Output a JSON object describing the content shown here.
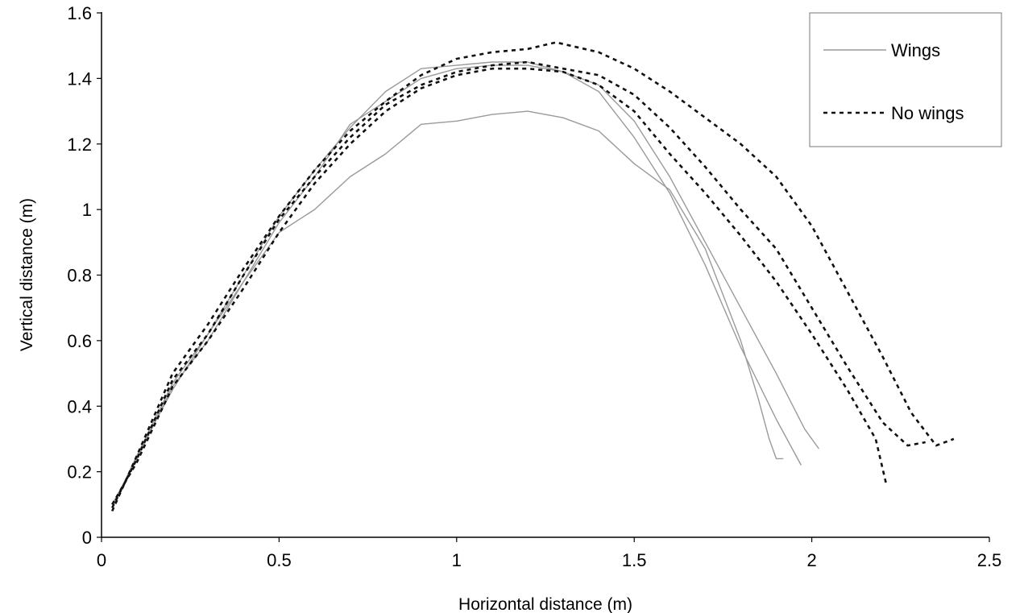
{
  "chart_data": {
    "type": "line",
    "xlabel": "Horizontal distance (m)",
    "ylabel": "Vertical distance (m)",
    "xlim": [
      0,
      2.5
    ],
    "ylim": [
      0,
      1.6
    ],
    "xticks": [
      0,
      0.5,
      1,
      1.5,
      2,
      2.5
    ],
    "xtick_labels": [
      "0",
      "0.5",
      "1",
      "1.5",
      "2",
      "2.5"
    ],
    "yticks": [
      0,
      0.2,
      0.4,
      0.6,
      0.8,
      1,
      1.2,
      1.4,
      1.6
    ],
    "ytick_labels": [
      "0",
      "0.2",
      "0.4",
      "0.6",
      "0.8",
      "1",
      "1.2",
      "1.4",
      "1.6"
    ],
    "grid": false,
    "legend_position": "top-right",
    "legend": [
      {
        "label": "Wings",
        "style": "solid",
        "color": "#9a9a9a"
      },
      {
        "label": "No wings",
        "style": "dashed",
        "color": "#111111"
      }
    ],
    "series": [
      {
        "group": "Wings",
        "x": [
          0.03,
          0.1,
          0.2,
          0.3,
          0.4,
          0.5,
          0.6,
          0.7,
          0.8,
          0.9,
          1.0,
          1.1,
          1.2,
          1.3,
          1.4,
          1.5,
          1.6,
          1.7,
          1.8,
          1.85,
          1.88,
          1.9,
          1.92
        ],
        "y": [
          0.09,
          0.25,
          0.45,
          0.62,
          0.78,
          0.93,
          1.0,
          1.1,
          1.17,
          1.26,
          1.27,
          1.29,
          1.3,
          1.28,
          1.24,
          1.14,
          1.06,
          0.88,
          0.6,
          0.42,
          0.3,
          0.24,
          0.24
        ]
      },
      {
        "group": "Wings",
        "x": [
          0.03,
          0.1,
          0.2,
          0.3,
          0.4,
          0.5,
          0.6,
          0.7,
          0.8,
          0.9,
          1.0,
          1.1,
          1.2,
          1.3,
          1.4,
          1.5,
          1.6,
          1.7,
          1.8,
          1.9,
          1.97
        ],
        "y": [
          0.09,
          0.25,
          0.47,
          0.62,
          0.8,
          0.98,
          1.12,
          1.25,
          1.36,
          1.43,
          1.44,
          1.45,
          1.45,
          1.42,
          1.36,
          1.22,
          1.05,
          0.83,
          0.58,
          0.36,
          0.22
        ]
      },
      {
        "group": "Wings",
        "x": [
          0.03,
          0.1,
          0.2,
          0.3,
          0.4,
          0.5,
          0.6,
          0.7,
          0.8,
          0.9,
          1.0,
          1.1,
          1.2,
          1.3,
          1.4,
          1.5,
          1.6,
          1.7,
          1.8,
          1.9,
          1.98,
          2.02
        ],
        "y": [
          0.1,
          0.24,
          0.46,
          0.6,
          0.78,
          0.96,
          1.1,
          1.26,
          1.33,
          1.4,
          1.43,
          1.44,
          1.44,
          1.42,
          1.38,
          1.27,
          1.1,
          0.9,
          0.7,
          0.5,
          0.33,
          0.27
        ]
      },
      {
        "group": "No wings",
        "x": [
          0.03,
          0.1,
          0.2,
          0.3,
          0.4,
          0.5,
          0.6,
          0.7,
          0.8,
          0.9,
          1.0,
          1.1,
          1.2,
          1.28,
          1.4,
          1.5,
          1.6,
          1.7,
          1.8,
          1.9,
          2.0,
          2.1,
          2.2,
          2.28,
          2.35,
          2.4
        ],
        "y": [
          0.08,
          0.25,
          0.5,
          0.65,
          0.82,
          0.98,
          1.12,
          1.24,
          1.33,
          1.41,
          1.46,
          1.48,
          1.49,
          1.51,
          1.48,
          1.43,
          1.36,
          1.28,
          1.2,
          1.1,
          0.95,
          0.75,
          0.55,
          0.38,
          0.28,
          0.3
        ]
      },
      {
        "group": "No wings",
        "x": [
          0.03,
          0.1,
          0.2,
          0.3,
          0.4,
          0.5,
          0.6,
          0.7,
          0.8,
          0.9,
          1.0,
          1.1,
          1.2,
          1.3,
          1.4,
          1.5,
          1.6,
          1.7,
          1.8,
          1.9,
          2.0,
          2.1,
          2.2,
          2.27,
          2.32
        ],
        "y": [
          0.09,
          0.24,
          0.48,
          0.62,
          0.8,
          0.97,
          1.1,
          1.22,
          1.32,
          1.38,
          1.42,
          1.44,
          1.45,
          1.43,
          1.41,
          1.35,
          1.25,
          1.13,
          1.0,
          0.88,
          0.7,
          0.52,
          0.35,
          0.28,
          0.29
        ]
      },
      {
        "group": "No wings",
        "x": [
          0.03,
          0.1,
          0.2,
          0.3,
          0.4,
          0.5,
          0.6,
          0.7,
          0.8,
          0.9,
          1.0,
          1.1,
          1.2,
          1.3,
          1.4,
          1.5,
          1.6,
          1.7,
          1.8,
          1.9,
          2.0,
          2.1,
          2.18,
          2.21
        ],
        "y": [
          0.1,
          0.23,
          0.46,
          0.6,
          0.76,
          0.93,
          1.08,
          1.2,
          1.3,
          1.37,
          1.41,
          1.43,
          1.43,
          1.42,
          1.38,
          1.3,
          1.17,
          1.05,
          0.92,
          0.78,
          0.62,
          0.45,
          0.3,
          0.16
        ]
      }
    ]
  }
}
